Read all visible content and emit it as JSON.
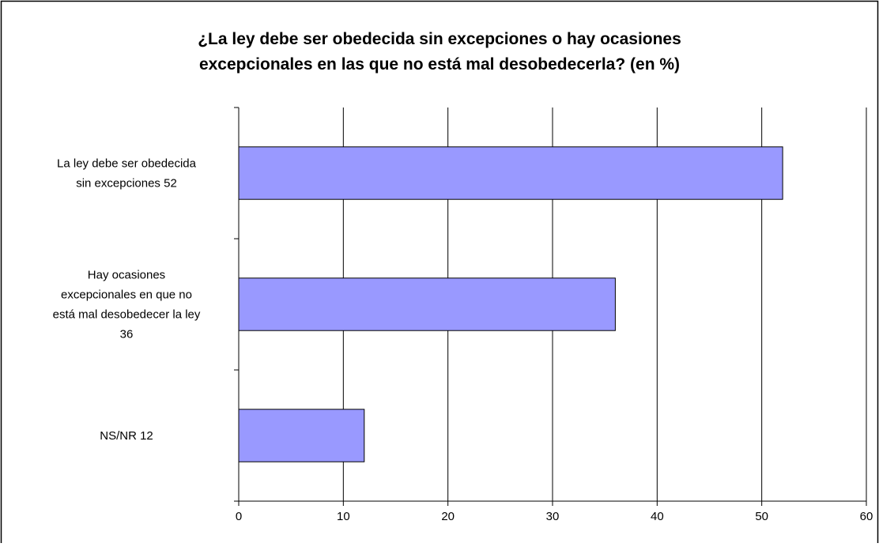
{
  "chart_data": {
    "type": "bar",
    "orientation": "horizontal",
    "title": [
      "¿La ley debe ser obedecida sin excepciones o hay ocasiones",
      "excepcionales en las que no está mal desobedecerla? (en %)"
    ],
    "categories": [
      [
        "La ley debe ser obedecida",
        "sin excepciones   52"
      ],
      [
        "Hay ocasiones",
        "excepcionales en que no",
        "está mal desobedecer la ley",
        "36"
      ],
      [
        "NS/NR   12"
      ]
    ],
    "values": [
      52,
      36,
      12
    ],
    "xlim": [
      0,
      60
    ],
    "xticks": [
      0,
      10,
      20,
      30,
      40,
      50,
      60
    ],
    "grid": "vertical",
    "legend": "none",
    "bar_color": "#9999ff",
    "bar_edge_color": "#000000"
  }
}
